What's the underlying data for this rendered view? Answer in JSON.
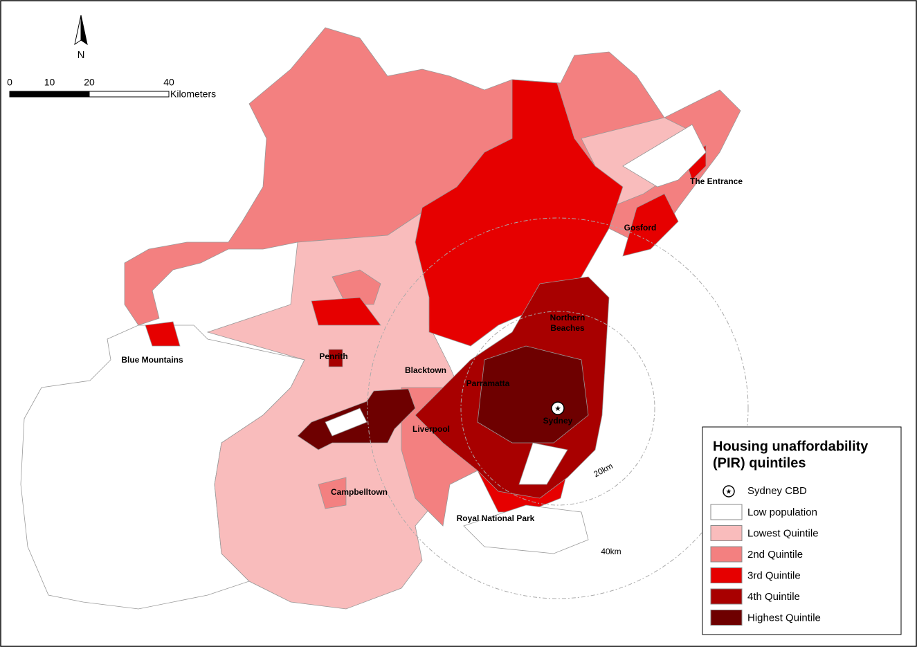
{
  "north_arrow": {
    "label": "N"
  },
  "scale_bar": {
    "ticks": [
      0,
      10,
      20,
      40
    ],
    "unit": "Kilometers"
  },
  "places": [
    {
      "label": "Blue Mountains"
    },
    {
      "label": "Penrith"
    },
    {
      "label": "Blacktown"
    },
    {
      "label": "Parramatta"
    },
    {
      "label": "Liverpool"
    },
    {
      "label": "Sydney"
    },
    {
      "label": "Campbelltown"
    },
    {
      "label": "Royal National Park"
    },
    {
      "label": "Gosford"
    },
    {
      "label": "The Entrance"
    }
  ],
  "place_multiline": {
    "lines": [
      "Northern",
      "Beaches"
    ]
  },
  "rings": [
    {
      "label": "20km"
    },
    {
      "label": "40km"
    }
  ],
  "legend": {
    "title_lines": [
      "Housing unaffordability",
      "(PIR) quintiles"
    ],
    "cbd": "Sydney CBD",
    "items": [
      {
        "label": "Low population",
        "color": "#ffffff"
      },
      {
        "label": "Lowest Quintile",
        "color": "#f9bcbc"
      },
      {
        "label": "2nd Quintile",
        "color": "#f38080"
      },
      {
        "label": "3rd Quintile",
        "color": "#e60000"
      },
      {
        "label": "4th Quintile",
        "color": "#a80000"
      },
      {
        "label": "Highest Quintile",
        "color": "#6e0000"
      }
    ]
  }
}
